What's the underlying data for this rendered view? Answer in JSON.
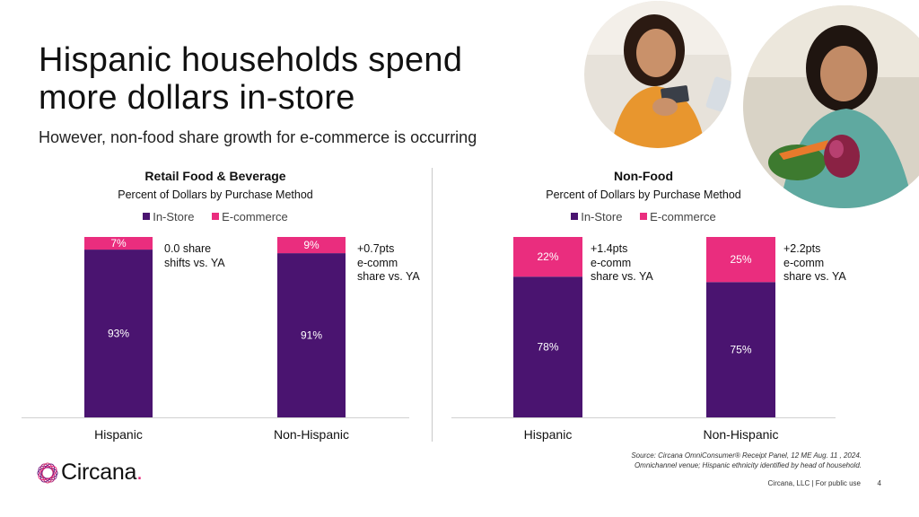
{
  "slide": {
    "title": "Hispanic households spend more dollars in-store",
    "subtitle": "However, non-food share growth for e-commerce is occurring",
    "source_line1": "Source: Circana OmniConsumer® Receipt Panel, 12 ME Aug. 11 , 2024.",
    "source_line2": "Omnichannel venue; Hispanic ethnicity identified by head of household.",
    "footer": "Circana, LLC |  For public use",
    "page_number": "4",
    "logo_text": "Circana",
    "logo_dot": "."
  },
  "colors": {
    "in_store": "#4a1470",
    "ecommerce": "#ea2d7e",
    "axis": "#d0d0d0"
  },
  "chart_data": [
    {
      "type": "stacked-bar",
      "title": "Retail Food & Beverage",
      "subtitle": "Percent of Dollars by Purchase Method",
      "categories": [
        "Hispanic",
        "Non-Hispanic"
      ],
      "series": [
        {
          "name": "In-Store",
          "values": [
            93,
            91
          ],
          "labels": [
            "93%",
            "91%"
          ]
        },
        {
          "name": "E-commerce",
          "values": [
            7,
            9
          ],
          "labels": [
            "7%",
            "9%"
          ]
        }
      ],
      "ylim": [
        0,
        100
      ],
      "legend": [
        "In-Store",
        "E-commerce"
      ],
      "annotations": [
        {
          "lines": [
            "0.0 share",
            "shifts vs. YA"
          ]
        },
        {
          "lines": [
            "+0.7pts",
            "e-comm",
            "share vs. YA"
          ]
        }
      ]
    },
    {
      "type": "stacked-bar",
      "title": "Non-Food",
      "subtitle": "Percent of Dollars by Purchase Method",
      "categories": [
        "Hispanic",
        "Non-Hispanic"
      ],
      "series": [
        {
          "name": "In-Store",
          "values": [
            78,
            75
          ],
          "labels": [
            "78%",
            "75%"
          ]
        },
        {
          "name": "E-commerce",
          "values": [
            22,
            25
          ],
          "labels": [
            "22%",
            "25%"
          ]
        }
      ],
      "ylim": [
        0,
        100
      ],
      "legend": [
        "In-Store",
        "E-commerce"
      ],
      "annotations": [
        {
          "lines": [
            "+1.4pts",
            "e-comm",
            "share vs. YA"
          ]
        },
        {
          "lines": [
            "+2.2pts",
            "e-comm",
            "share vs. YA"
          ]
        }
      ]
    }
  ]
}
